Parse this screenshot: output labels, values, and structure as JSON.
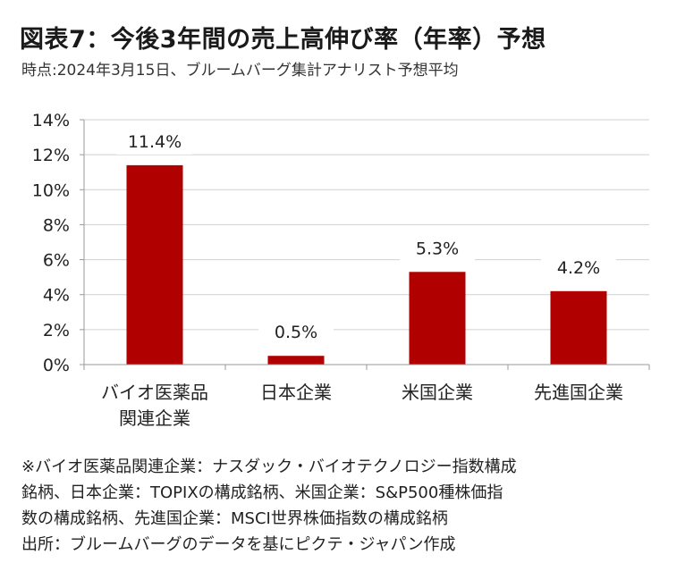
{
  "title": "図表7：今後3年間の売上高伸び率（年率）予想",
  "subtitle": "時点:2024年3月15日、ブルームバーグ集計アナリスト予想平均",
  "chart_data": {
    "type": "bar",
    "categories": [
      [
        "バイオ医薬品",
        "関連企業"
      ],
      [
        "日本企業"
      ],
      [
        "米国企業"
      ],
      [
        "先進国企業"
      ]
    ],
    "values": [
      11.4,
      0.5,
      5.3,
      4.2
    ],
    "data_labels": [
      "11.4%",
      "0.5%",
      "5.3%",
      "4.2%"
    ],
    "ylim": [
      0,
      14
    ],
    "yticks": [
      "0%",
      "2%",
      "4%",
      "6%",
      "8%",
      "10%",
      "12%",
      "14%"
    ],
    "bar_color": "#b00000",
    "grid_color": "#d0d0d0",
    "grid": true
  },
  "notes": [
    "※バイオ医薬品関連企業：ナスダック・バイオテクノロジー指数構成",
    "銘柄、日本企業：TOPIXの構成銘柄、米国企業：S&P500種株価指",
    "数の構成銘柄、先進国企業：MSCI世界株価指数の構成銘柄",
    "出所：ブルームバーグのデータを基にピクテ・ジャパン作成"
  ]
}
